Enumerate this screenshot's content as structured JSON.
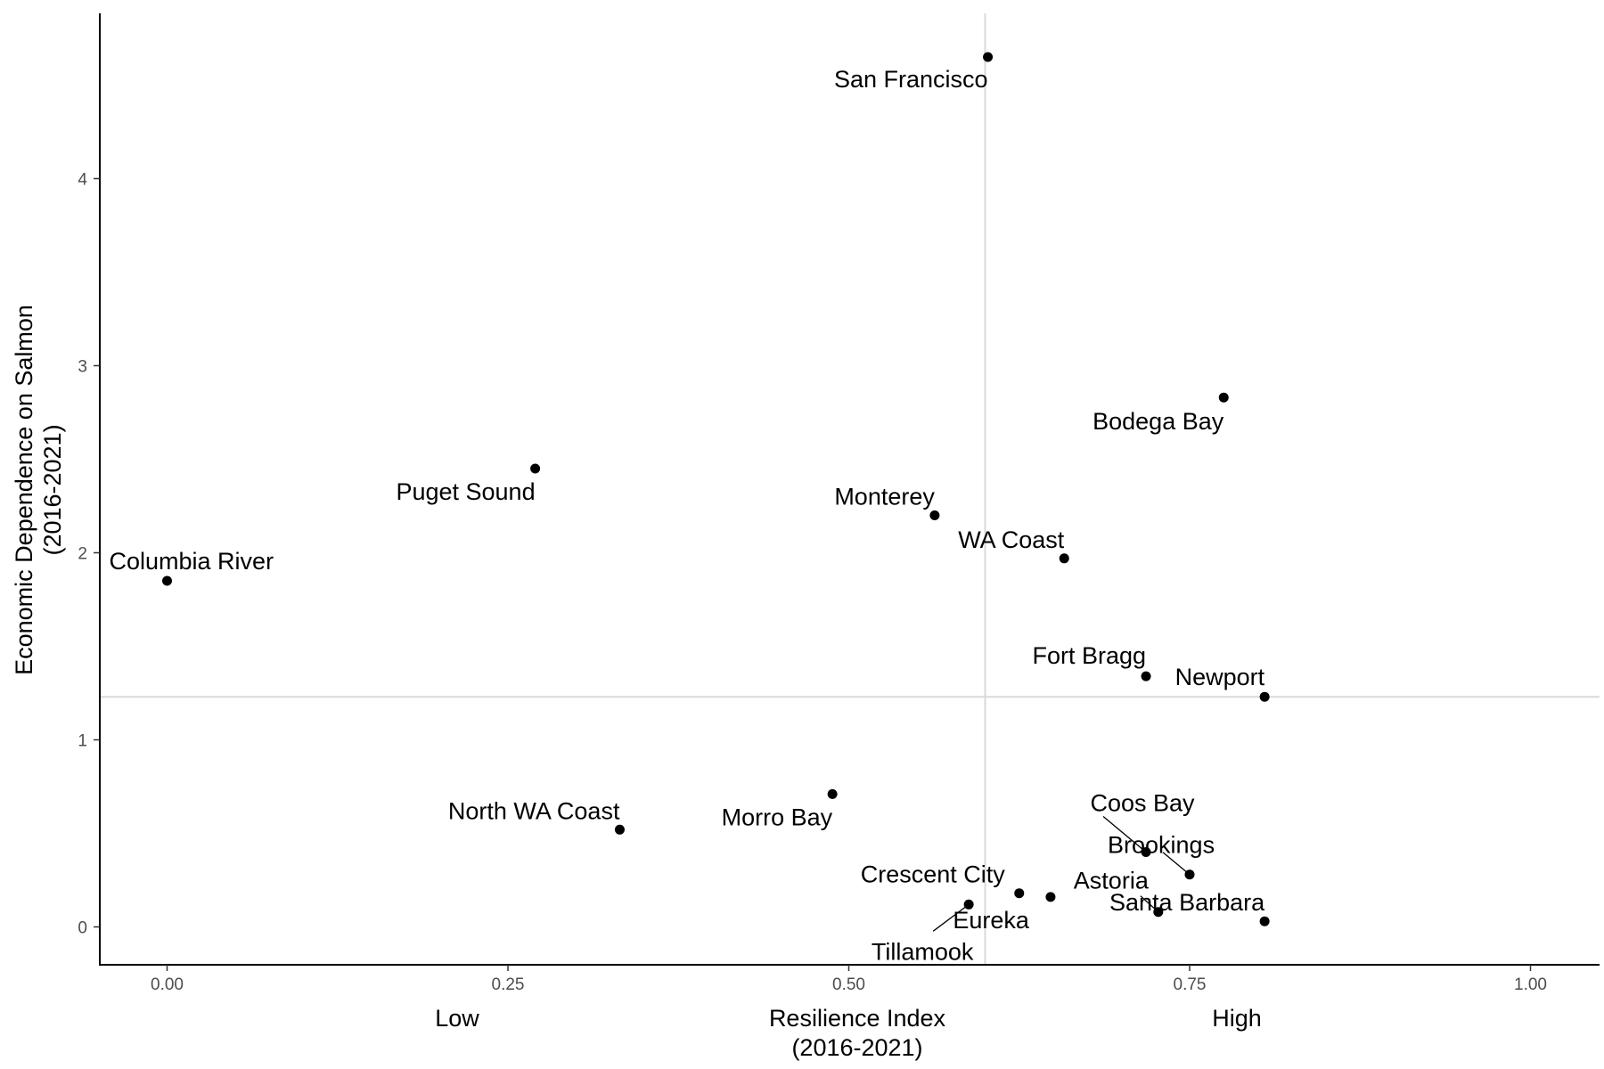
{
  "chart_data": {
    "type": "scatter",
    "xlabel": "Resilience Index\n(2016-2021)",
    "ylabel": "Economic Dependence on Salmon\n(2016-2021)",
    "xlim": [
      -0.05,
      1.05
    ],
    "ylim": [
      -0.2,
      4.85
    ],
    "x_ticks": [
      "0.00",
      "0.25",
      "0.50",
      "0.75",
      "1.00"
    ],
    "y_ticks": [
      "0",
      "1",
      "2",
      "3",
      "4"
    ],
    "x_extra_labels": {
      "low": "Low",
      "high": "High"
    },
    "reference_lines": {
      "vertical_x": 0.6,
      "horizontal_y": 1.23
    },
    "grid": false,
    "points": [
      {
        "name": "San Francisco",
        "x": 0.602,
        "y": 4.65
      },
      {
        "name": "Bodega Bay",
        "x": 0.775,
        "y": 2.83
      },
      {
        "name": "Puget Sound",
        "x": 0.27,
        "y": 2.45
      },
      {
        "name": "Monterey",
        "x": 0.563,
        "y": 2.2
      },
      {
        "name": "WA Coast",
        "x": 0.658,
        "y": 1.97
      },
      {
        "name": "Columbia River",
        "x": 0.0,
        "y": 1.85
      },
      {
        "name": "Fort Bragg",
        "x": 0.718,
        "y": 1.34
      },
      {
        "name": "Newport",
        "x": 0.805,
        "y": 1.23
      },
      {
        "name": "Morro Bay",
        "x": 0.488,
        "y": 0.71
      },
      {
        "name": "North WA Coast",
        "x": 0.332,
        "y": 0.52
      },
      {
        "name": "Coos Bay",
        "x": 0.718,
        "y": 0.4
      },
      {
        "name": "Brookings",
        "x": 0.75,
        "y": 0.28
      },
      {
        "name": "Crescent City",
        "x": 0.625,
        "y": 0.18
      },
      {
        "name": "Eureka",
        "x": 0.648,
        "y": 0.16
      },
      {
        "name": "Tillamook",
        "x": 0.588,
        "y": 0.12
      },
      {
        "name": "Astoria",
        "x": 0.727,
        "y": 0.08
      },
      {
        "name": "Santa Barbara",
        "x": 0.805,
        "y": 0.03
      }
    ]
  }
}
